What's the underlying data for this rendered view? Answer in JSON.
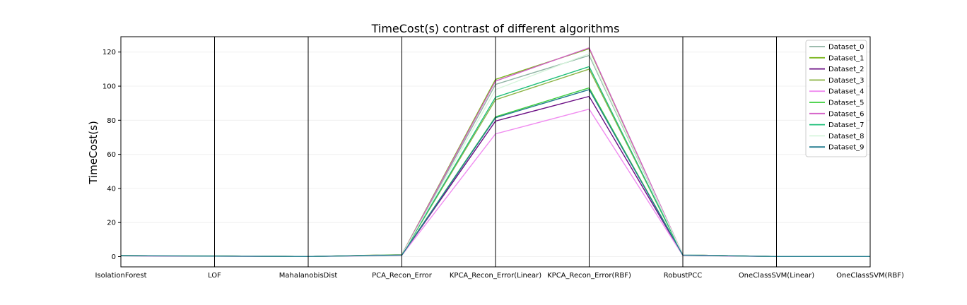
{
  "chart_data": {
    "type": "line",
    "title": "TimeCost(s) contrast of different algorithms",
    "ylabel": "TimeCost(s)",
    "xlabel": "",
    "ylim": [
      -6,
      129
    ],
    "yticks": [
      0,
      20,
      40,
      60,
      80,
      100,
      120
    ],
    "grid": true,
    "legend_position": "top-right",
    "categories": [
      "IsolationForest",
      "LOF",
      "MahalanobisDist",
      "PCA_Recon_Error",
      "KPCA_Recon_Error(Linear)",
      "KPCA_Recon_Error(RBF)",
      "RobustPCC",
      "OneClassSVM(Linear)",
      "OneClassSVM(RBF)"
    ],
    "series": [
      {
        "name": "Dataset_0",
        "color": "#8fb3a3",
        "values": [
          0.6,
          0.4,
          0.1,
          1.0,
          101.0,
          118.0,
          1.0,
          0.1,
          0.1
        ]
      },
      {
        "name": "Dataset_1",
        "color": "#7ab51d",
        "values": [
          0.6,
          0.4,
          0.1,
          1.2,
          104.0,
          122.0,
          1.0,
          0.1,
          0.1
        ]
      },
      {
        "name": "Dataset_2",
        "color": "#6a0d83",
        "values": [
          0.5,
          0.3,
          0.1,
          0.9,
          79.5,
          94.0,
          0.8,
          0.1,
          0.1
        ]
      },
      {
        "name": "Dataset_3",
        "color": "#8db446",
        "values": [
          0.6,
          0.4,
          0.1,
          1.0,
          92.0,
          110.0,
          1.0,
          0.1,
          0.1
        ]
      },
      {
        "name": "Dataset_4",
        "color": "#f08cf0",
        "values": [
          0.5,
          0.3,
          0.1,
          0.8,
          72.0,
          86.5,
          0.7,
          0.1,
          0.1
        ]
      },
      {
        "name": "Dataset_5",
        "color": "#3ccf3c",
        "values": [
          0.6,
          0.4,
          0.1,
          1.0,
          82.0,
          99.0,
          0.9,
          0.1,
          0.1
        ]
      },
      {
        "name": "Dataset_6",
        "color": "#d45fc7",
        "values": [
          0.6,
          0.4,
          0.1,
          1.1,
          103.0,
          122.5,
          1.0,
          0.1,
          0.1
        ]
      },
      {
        "name": "Dataset_7",
        "color": "#1fbf7a",
        "values": [
          0.6,
          0.4,
          0.1,
          1.1,
          93.5,
          111.5,
          1.0,
          0.1,
          0.1
        ]
      },
      {
        "name": "Dataset_8",
        "color": "#d6f5dc",
        "values": [
          0.6,
          0.4,
          0.1,
          1.0,
          98.0,
          119.0,
          1.0,
          0.1,
          0.1
        ]
      },
      {
        "name": "Dataset_9",
        "color": "#237c8f",
        "values": [
          0.6,
          0.3,
          0.1,
          0.9,
          81.5,
          98.0,
          0.9,
          0.1,
          0.1
        ]
      }
    ]
  }
}
